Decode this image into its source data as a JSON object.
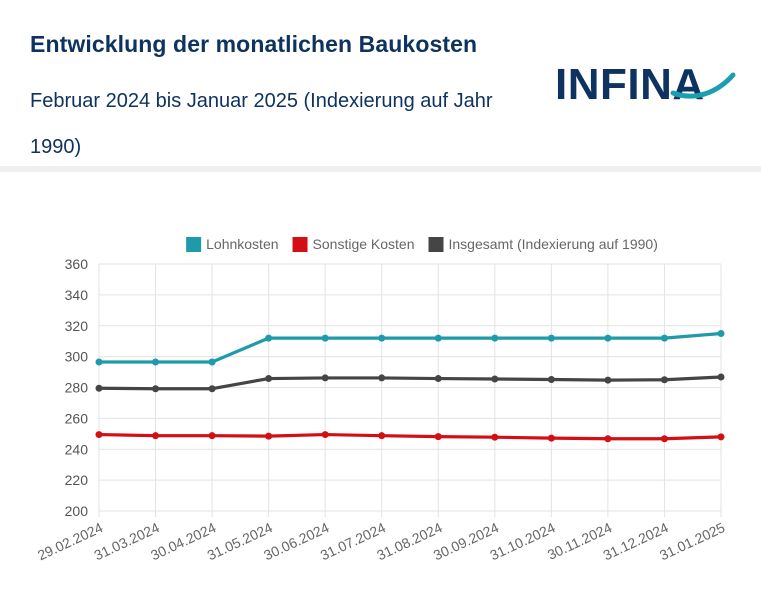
{
  "header": {
    "title": "Entwicklung der monatlichen Baukosten",
    "subtitle": "Februar 2024 bis Januar 2025 (Indexierung auf Jahr 1990)",
    "logo_text": "INFINA"
  },
  "colors": {
    "brand_navy": "#0e3360",
    "brand_teal": "#1a9fb0"
  },
  "chart_data": {
    "type": "line",
    "categories": [
      "29.02.2024",
      "31.03.2024",
      "30.04.2024",
      "31.05.2024",
      "30.06.2024",
      "31.07.2024",
      "31.08.2024",
      "30.09.2024",
      "31.10.2024",
      "30.11.2024",
      "31.12.2024",
      "31.01.2025"
    ],
    "series": [
      {
        "name": "Lohnkosten",
        "color": "#1e9aa8",
        "values": [
          296.5,
          296.5,
          296.5,
          312,
          312,
          312,
          312,
          312,
          312,
          312,
          312,
          315
        ]
      },
      {
        "name": "Sonstige Kosten",
        "color": "#d40f14",
        "values": [
          249.5,
          248.8,
          248.8,
          248.5,
          249.5,
          248.8,
          248.2,
          247.8,
          247.2,
          246.8,
          246.8,
          248
        ]
      },
      {
        "name": "Insgesamt (Indexierung auf 1990)",
        "color": "#454545",
        "values": [
          279.5,
          279.2,
          279.2,
          285.8,
          286.2,
          286.2,
          285.8,
          285.5,
          285.2,
          284.8,
          285,
          286.8
        ]
      }
    ],
    "ylim": [
      200,
      360
    ],
    "yticks": [
      200,
      220,
      240,
      260,
      280,
      300,
      320,
      340,
      360
    ],
    "grid": true,
    "legend": "top-center"
  }
}
